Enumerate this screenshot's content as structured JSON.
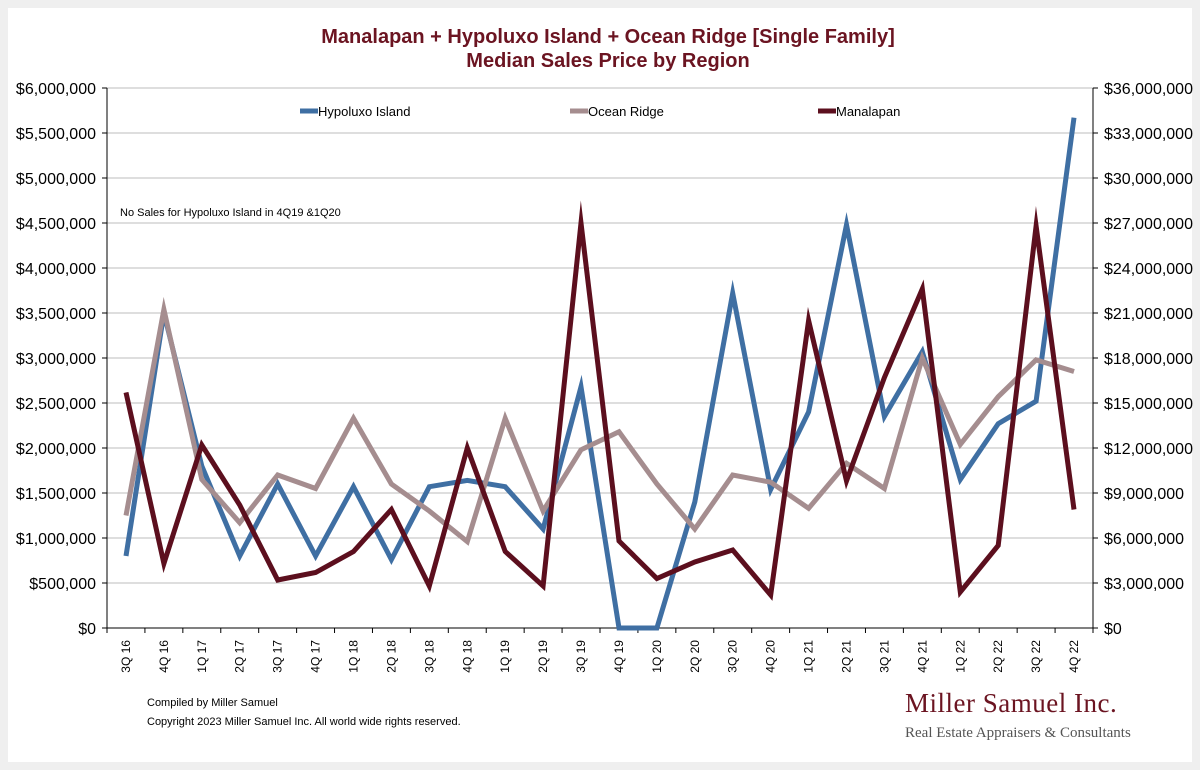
{
  "chart_data": {
    "type": "line",
    "title": "Manalapan + Hypoluxo Island + Ocean Ridge [Single Family]",
    "subtitle": "Median Sales Price by Region",
    "categories": [
      "3Q 16",
      "4Q 16",
      "1Q 17",
      "2Q 17",
      "3Q 17",
      "4Q 17",
      "1Q 18",
      "2Q 18",
      "3Q 18",
      "4Q 18",
      "1Q 19",
      "2Q 19",
      "3Q 19",
      "4Q 19",
      "1Q 20",
      "2Q 20",
      "3Q 20",
      "4Q 20",
      "1Q 21",
      "2Q 21",
      "3Q 21",
      "4Q 21",
      "1Q 22",
      "2Q 22",
      "3Q 22",
      "4Q 22"
    ],
    "left_axis": {
      "ylim": [
        0,
        6000000
      ],
      "ticks": [
        "$0",
        "$500,000",
        "$1,000,000",
        "$1,500,000",
        "$2,000,000",
        "$2,500,000",
        "$3,000,000",
        "$3,500,000",
        "$4,000,000",
        "$4,500,000",
        "$5,000,000",
        "$5,500,000",
        "$6,000,000"
      ]
    },
    "right_axis": {
      "ylim": [
        0,
        36000000
      ],
      "ticks": [
        "$0",
        "$3,000,000",
        "$6,000,000",
        "$9,000,000",
        "$12,000,000",
        "$15,000,000",
        "$18,000,000",
        "$21,000,000",
        "$24,000,000",
        "$27,000,000",
        "$30,000,000",
        "$33,000,000",
        "$36,000,000"
      ]
    },
    "series": [
      {
        "name": "Hypoluxo Island",
        "axis": "left",
        "color": "#3f6fa3",
        "values": [
          800000,
          3500000,
          1800000,
          800000,
          1600000,
          800000,
          1570000,
          760000,
          1570000,
          1640000,
          1570000,
          1100000,
          2680000,
          0,
          0,
          1400000,
          3720000,
          1540000,
          2400000,
          4480000,
          2350000,
          3070000,
          1650000,
          2270000,
          2520000,
          5670000
        ]
      },
      {
        "name": "Ocean Ridge",
        "axis": "left",
        "color": "#a58d8f",
        "values": [
          1250000,
          3540000,
          1650000,
          1170000,
          1700000,
          1550000,
          2330000,
          1600000,
          1300000,
          960000,
          2330000,
          1300000,
          1980000,
          2180000,
          1600000,
          1100000,
          1700000,
          1620000,
          1330000,
          1830000,
          1550000,
          3000000,
          2040000,
          2570000,
          2980000,
          2850000
        ]
      },
      {
        "name": "Manalapan",
        "axis": "right",
        "color": "#5c0f1e",
        "values": [
          15700000,
          4300000,
          12200000,
          8200000,
          3200000,
          3700000,
          5100000,
          7900000,
          2800000,
          12000000,
          5100000,
          2800000,
          27000000,
          5800000,
          3300000,
          4400000,
          5200000,
          2200000,
          20500000,
          9800000,
          16700000,
          22600000,
          2400000,
          5500000,
          26800000,
          7900000
        ]
      }
    ],
    "legend_position": "top",
    "grid": true,
    "annotation": "No Sales for Hypoluxo Island in 4Q19 &1Q20"
  },
  "footer": {
    "compiled": "Compiled by Miller Samuel",
    "copyright": "Copyright 2023 Miller Samuel Inc.  All world wide rights reserved."
  },
  "brand": {
    "name": "Miller Samuel Inc.",
    "tagline": "Real Estate Appraisers & Consultants"
  }
}
